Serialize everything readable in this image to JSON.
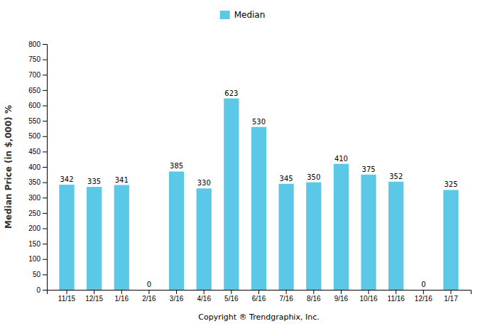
{
  "chart_data": {
    "type": "bar",
    "categories": [
      "11/15",
      "12/15",
      "1/16",
      "2/16",
      "3/16",
      "4/16",
      "5/16",
      "6/16",
      "7/16",
      "8/16",
      "9/16",
      "10/16",
      "11/16",
      "12/16",
      "1/17"
    ],
    "series": [
      {
        "name": "Median",
        "color": "#5BC8E8",
        "values": [
          342,
          335,
          341,
          0,
          385,
          330,
          623,
          530,
          345,
          350,
          410,
          375,
          352,
          0,
          325
        ]
      }
    ],
    "ylabel": "Median Price (in $,000) %",
    "xlabel": "Copyright ® Trendgraphix, Inc.",
    "ylim": [
      0,
      800
    ],
    "yticks": [
      0,
      50,
      100,
      150,
      200,
      250,
      300,
      350,
      400,
      450,
      500,
      550,
      600,
      650,
      700,
      750,
      800
    ],
    "grid": false,
    "legend": "top",
    "data_labels": true
  }
}
